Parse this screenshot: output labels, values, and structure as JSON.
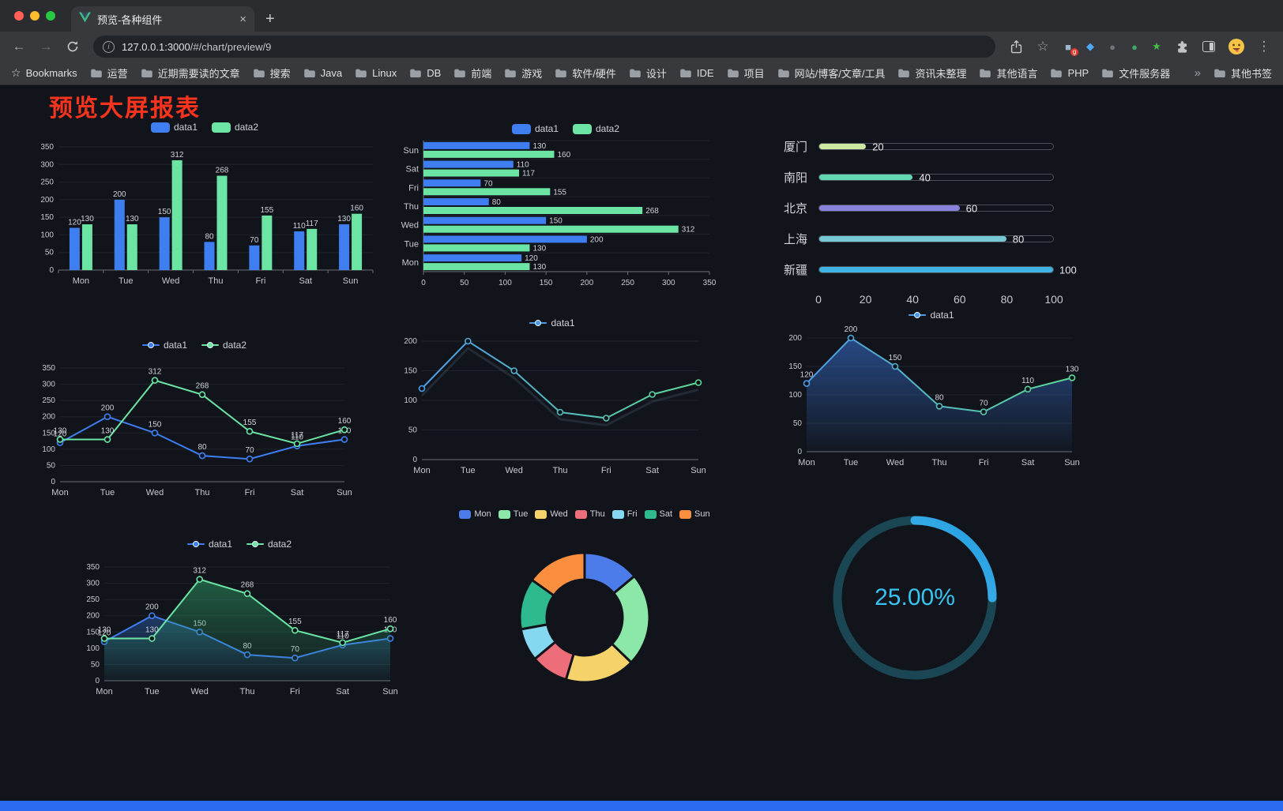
{
  "browser": {
    "tab": {
      "title": "预览-各种组件",
      "close_glyph": "×",
      "new_glyph": "+"
    },
    "nav": {
      "back_glyph": "←",
      "forward_glyph": "→"
    },
    "address": {
      "host": "127.0.0.1:3000",
      "path": "/#/chart/preview/9",
      "info_glyph": "i"
    },
    "star_glyph": "☆",
    "menu_glyph": "⋮",
    "overflow_glyph": "»",
    "bookmarks_label": "Bookmarks",
    "other_bookmarks_label": "其他书签",
    "bookmarks": [
      "运营",
      "近期需要读的文章",
      "搜索",
      "Java",
      "Linux",
      "DB",
      "前端",
      "游戏",
      "软件/硬件",
      "设计",
      "IDE",
      "项目",
      "网站/博客/文章/工具",
      "资讯未整理",
      "其他语言",
      "PHP",
      "文件服务器"
    ],
    "extensions": [
      {
        "name": "grid-extension-icon",
        "glyph": "■",
        "color": "#9fb6cc",
        "badge": "g"
      },
      {
        "name": "kite-extension-icon",
        "glyph": "◆",
        "color": "#4fa8f5"
      },
      {
        "name": "globe-extension-icon",
        "glyph": "●",
        "color": "#70767d"
      },
      {
        "name": "green-circle-extension-icon",
        "glyph": "●",
        "color": "#43a564"
      },
      {
        "name": "star-extension-icon",
        "glyph": "★",
        "color": "#49bd45"
      }
    ]
  },
  "page": {
    "title": "预览大屏报表",
    "title_color": "#F8341F",
    "accent_bar_color": "#2B6AF3"
  },
  "chart_data": [
    {
      "type": "bar",
      "title": "",
      "categories": [
        "Mon",
        "Tue",
        "Wed",
        "Thu",
        "Fri",
        "Sat",
        "Sun"
      ],
      "series": [
        {
          "name": "data1",
          "color": "#3E7EF0",
          "values": [
            120,
            200,
            150,
            80,
            70,
            110,
            130
          ]
        },
        {
          "name": "data2",
          "color": "#6CE5A4",
          "values": [
            130,
            130,
            312,
            268,
            155,
            117,
            160
          ]
        }
      ],
      "ylim": [
        0,
        350
      ],
      "yticks": [
        0,
        50,
        100,
        150,
        200,
        250,
        300,
        350
      ],
      "show_labels": true,
      "legend_position": "top",
      "grid": true
    },
    {
      "type": "bar-horizontal",
      "title": "",
      "categories": [
        "Mon",
        "Tue",
        "Wed",
        "Thu",
        "Fri",
        "Sat",
        "Sun"
      ],
      "series": [
        {
          "name": "data1",
          "color": "#3E7EF0",
          "values": [
            120,
            200,
            150,
            80,
            70,
            110,
            130
          ]
        },
        {
          "name": "data2",
          "color": "#6CE5A4",
          "values": [
            130,
            130,
            312,
            268,
            155,
            117,
            160
          ]
        }
      ],
      "xlim": [
        0,
        350
      ],
      "xticks": [
        0,
        50,
        100,
        150,
        200,
        250,
        300,
        350
      ],
      "show_labels": true,
      "legend_position": "top",
      "grid": true
    },
    {
      "type": "rank",
      "title": "",
      "items": [
        {
          "label": "厦门",
          "value": 20,
          "color": "#CDE9A1"
        },
        {
          "label": "南阳",
          "value": 40,
          "color": "#63D8B2"
        },
        {
          "label": "北京",
          "value": 60,
          "color": "#8A82DC"
        },
        {
          "label": "上海",
          "value": 80,
          "color": "#77C8D5"
        },
        {
          "label": "新疆",
          "value": 100,
          "color": "#41B2E4"
        }
      ],
      "max": 100,
      "xticks": [
        0,
        20,
        40,
        60,
        80,
        100
      ]
    },
    {
      "type": "line",
      "title": "",
      "categories": [
        "Mon",
        "Tue",
        "Wed",
        "Thu",
        "Fri",
        "Sat",
        "Sun"
      ],
      "series": [
        {
          "name": "data1",
          "color": "#3E7EF0",
          "values": [
            120,
            200,
            150,
            80,
            70,
            110,
            130
          ]
        },
        {
          "name": "data2",
          "color": "#6CE5A4",
          "values": [
            130,
            130,
            312,
            268,
            155,
            117,
            160
          ]
        }
      ],
      "ylim": [
        0,
        350
      ],
      "yticks": [
        0,
        50,
        100,
        150,
        200,
        250,
        300,
        350
      ],
      "show_labels": true,
      "legend_position": "top",
      "grid": true
    },
    {
      "type": "line",
      "title": "",
      "categories": [
        "Mon",
        "Tue",
        "Wed",
        "Thu",
        "Fri",
        "Sat",
        "Sun"
      ],
      "series": [
        {
          "name": "data1",
          "gradient": [
            "#4C9BE8",
            "#5FD894"
          ],
          "values": [
            120,
            200,
            150,
            80,
            70,
            110,
            130
          ]
        }
      ],
      "ylim": [
        0,
        200
      ],
      "yticks": [
        0,
        50,
        100,
        150,
        200
      ],
      "show_labels": false,
      "shadow": true,
      "legend_position": "top",
      "grid": true
    },
    {
      "type": "area",
      "title": "",
      "categories": [
        "Mon",
        "Tue",
        "Wed",
        "Thu",
        "Fri",
        "Sat",
        "Sun"
      ],
      "series": [
        {
          "name": "data1",
          "gradient": [
            "#4C9BE8",
            "#5FD894"
          ],
          "fill": "#3E7EF0",
          "values": [
            120,
            200,
            150,
            80,
            70,
            110,
            130
          ]
        }
      ],
      "ylim": [
        0,
        200
      ],
      "yticks": [
        0,
        50,
        100,
        150,
        200
      ],
      "show_labels": true,
      "legend_position": "top",
      "grid": true
    },
    {
      "type": "area",
      "title": "",
      "categories": [
        "Mon",
        "Tue",
        "Wed",
        "Thu",
        "Fri",
        "Sat",
        "Sun"
      ],
      "series": [
        {
          "name": "data1",
          "color": "#3E7EF0",
          "fill": "#2C5FAE",
          "values": [
            120,
            200,
            150,
            80,
            70,
            110,
            130
          ]
        },
        {
          "name": "data2",
          "color": "#6CE5A4",
          "fill": "#2FA56B",
          "values": [
            130,
            130,
            312,
            268,
            155,
            117,
            160
          ]
        }
      ],
      "ylim": [
        0,
        350
      ],
      "yticks": [
        0,
        50,
        100,
        150,
        200,
        250,
        300,
        350
      ],
      "show_labels": true,
      "legend_position": "top",
      "grid": true
    },
    {
      "type": "pie",
      "title": "",
      "items": [
        {
          "name": "Mon",
          "value": 120,
          "color": "#4C7CEA"
        },
        {
          "name": "Tue",
          "value": 200,
          "color": "#8BE8A8"
        },
        {
          "name": "Wed",
          "value": 150,
          "color": "#F5D36A"
        },
        {
          "name": "Thu",
          "value": 80,
          "color": "#EE6D7A"
        },
        {
          "name": "Fri",
          "value": 70,
          "color": "#84D8F0"
        },
        {
          "name": "Sat",
          "value": 110,
          "color": "#2FB98E"
        },
        {
          "name": "Sun",
          "value": 130,
          "color": "#F98F3E"
        }
      ],
      "legend_position": "top"
    },
    {
      "type": "gauge",
      "title": "",
      "value": 25,
      "label": "25.00%",
      "color": "#38C4F2",
      "track_color": "#1B4654",
      "gradient": [
        "#7BD6F6",
        "#1E9BE0"
      ]
    }
  ]
}
